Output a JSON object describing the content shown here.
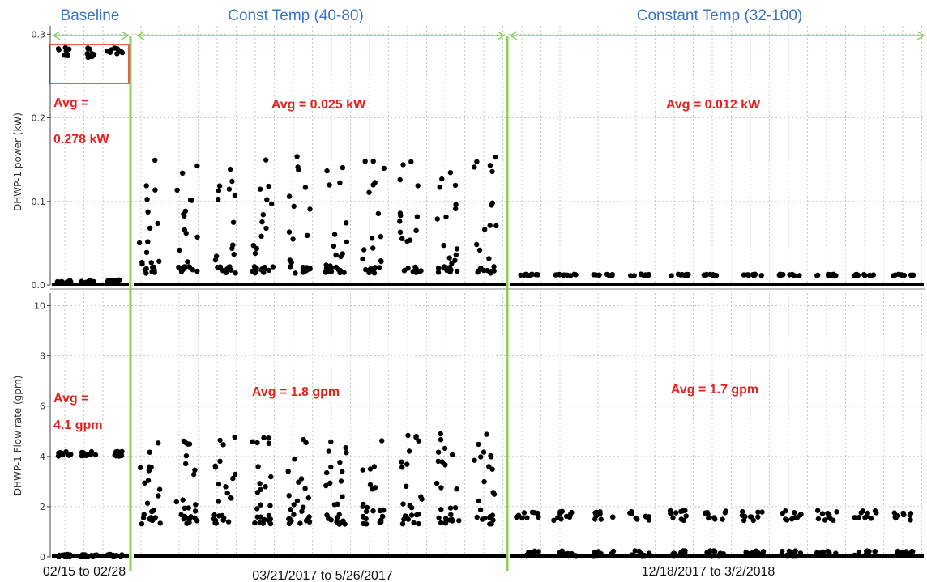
{
  "colors": {
    "period_title": "#3b74c4",
    "period_marker": "#8cd05a",
    "annotation": "#e82020",
    "points": "#000000",
    "grid": "#c8c8c8",
    "highlight_box": "#e82020"
  },
  "periods": [
    {
      "title": "Baseline",
      "date_range": "02/15 to 02/28"
    },
    {
      "title": "Const Temp (40-80)",
      "date_range": "03/21/2017 to 5/26/2017"
    },
    {
      "title": "Constant Temp (32-100)",
      "date_range": "12/18/2017 to 3/2/2018"
    }
  ],
  "annotations": {
    "power": [
      {
        "period": 0,
        "lines": [
          "Avg =",
          "0.278 kW"
        ]
      },
      {
        "period": 1,
        "lines": [
          "Avg = 0.025 kW"
        ]
      },
      {
        "period": 2,
        "lines": [
          "Avg = 0.012 kW"
        ]
      }
    ],
    "flow": [
      {
        "period": 0,
        "lines": [
          "Avg =",
          "4.1 gpm"
        ]
      },
      {
        "period": 1,
        "lines": [
          "Avg = 1.8 gpm"
        ]
      },
      {
        "period": 2,
        "lines": [
          "Avg = 1.7 gpm"
        ]
      }
    ]
  },
  "chart_data": [
    {
      "type": "scatter",
      "ylabel": "DHWP-1 power (kW)",
      "ylim": [
        0,
        0.31
      ],
      "yticks": [
        "0.0",
        "0.1",
        "0.2",
        "0.3"
      ],
      "grid": true,
      "highlight_box": "baseline cluster around 0.28 kW",
      "series": [
        {
          "period": 0,
          "days": 3,
          "levels": [
            {
              "value": 0.278,
              "spread": 0.006
            },
            {
              "value": 0.004,
              "spread": 0.002
            }
          ]
        },
        {
          "period": 1,
          "days": 10,
          "levels": [
            {
              "value": 0.0,
              "spread": 0.0
            },
            {
              "value": 0.018,
              "spread": 0.004
            }
          ],
          "scatter_range": [
            0.02,
            0.155
          ]
        },
        {
          "period": 2,
          "days": 11,
          "levels": [
            {
              "value": 0.0,
              "spread": 0.0
            },
            {
              "value": 0.012,
              "spread": 0.001
            }
          ]
        }
      ],
      "averages_kW": [
        0.278,
        0.025,
        0.012
      ]
    },
    {
      "type": "scatter",
      "ylabel": "DHWP-1 Flow rate (gpm)",
      "ylim": [
        0,
        10.5
      ],
      "yticks": [
        "0",
        "2",
        "4",
        "6",
        "8",
        "10"
      ],
      "grid": true,
      "series": [
        {
          "period": 0,
          "days": 3,
          "levels": [
            {
              "value": 4.1,
              "spread": 0.1
            },
            {
              "value": 0.05,
              "spread": 0.05
            }
          ]
        },
        {
          "period": 1,
          "days": 10,
          "levels": [
            {
              "value": 0.0,
              "spread": 0.0
            },
            {
              "value": 1.5,
              "spread": 0.2
            }
          ],
          "scatter_range": [
            1.8,
            4.9
          ]
        },
        {
          "period": 2,
          "days": 11,
          "levels": [
            {
              "value": 0.0,
              "spread": 0.0
            },
            {
              "value": 1.65,
              "spread": 0.2
            },
            {
              "value": 0.15,
              "spread": 0.1
            }
          ]
        }
      ],
      "averages_gpm": [
        4.1,
        1.8,
        1.7
      ]
    }
  ]
}
